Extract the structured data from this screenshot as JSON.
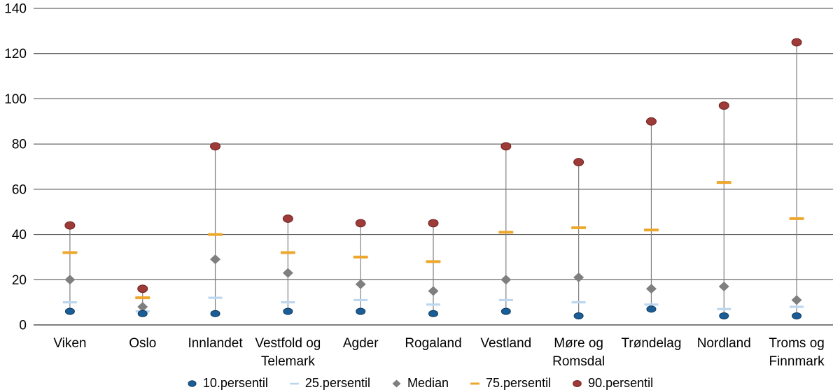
{
  "chart_data": {
    "type": "custom-percentile-range",
    "title": "",
    "categories": [
      "Viken",
      "Oslo",
      "Innlandet",
      "Vestfold og Telemark",
      "Agder",
      "Rogaland",
      "Vestland",
      "Møre og Romsdal",
      "Trøndelag",
      "Nordland",
      "Troms og Finnmark"
    ],
    "series": [
      {
        "name": "10.persentil",
        "marker": "ellipse",
        "color": "#1b5e97",
        "stroke": "#0f3a5f",
        "values": [
          6,
          5,
          5,
          6,
          6,
          5,
          6,
          4,
          7,
          4,
          4
        ]
      },
      {
        "name": "25.persentil",
        "marker": "dash",
        "color": "#bdd7ee",
        "values": [
          10,
          6,
          12,
          10,
          11,
          9,
          11,
          10,
          9,
          7,
          8
        ]
      },
      {
        "name": "Median",
        "marker": "diamond",
        "color": "#7f7f7f",
        "values": [
          20,
          8,
          29,
          23,
          18,
          15,
          20,
          21,
          16,
          17,
          11
        ]
      },
      {
        "name": "75.persentil",
        "marker": "dash",
        "color": "#eda72c",
        "values": [
          32,
          12,
          40,
          32,
          30,
          28,
          41,
          43,
          42,
          63,
          47
        ]
      },
      {
        "name": "90.persentil",
        "marker": "ellipse",
        "color": "#9e3a38",
        "stroke": "#6d2422",
        "values": [
          44,
          16,
          79,
          47,
          45,
          45,
          79,
          72,
          90,
          97,
          125
        ]
      }
    ],
    "ylim": [
      0,
      140
    ],
    "ytick_step": 20,
    "grid": true,
    "legend_position": "bottom",
    "axis_color": "#000000",
    "gridline_color": "#404040",
    "whisker_color": "#7f7f7f",
    "text_color": "#000000"
  }
}
